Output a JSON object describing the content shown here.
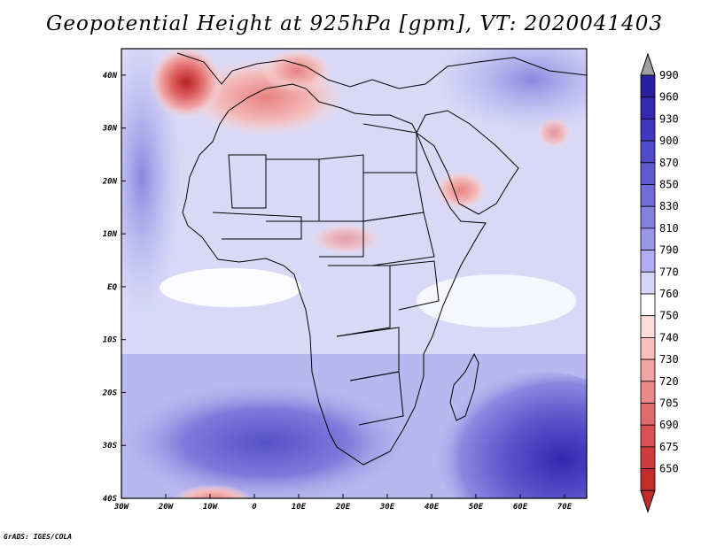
{
  "title": "Geopotential Height at 925hPa [gpm], VT: 2020041403",
  "credit": "GrADS: IGES/COLA",
  "map": {
    "lon_range": [
      -30,
      75
    ],
    "lat_range": [
      -40,
      45
    ],
    "lon_labels": [
      {
        "lon": -30,
        "label": "30W"
      },
      {
        "lon": -20,
        "label": "20W"
      },
      {
        "lon": -10,
        "label": "10W"
      },
      {
        "lon": 0,
        "label": "0"
      },
      {
        "lon": 10,
        "label": "10E"
      },
      {
        "lon": 20,
        "label": "20E"
      },
      {
        "lon": 30,
        "label": "30E"
      },
      {
        "lon": 40,
        "label": "40E"
      },
      {
        "lon": 50,
        "label": "50E"
      },
      {
        "lon": 60,
        "label": "60E"
      },
      {
        "lon": 70,
        "label": "70E"
      }
    ],
    "lat_labels": [
      {
        "lat": 40,
        "label": "40N"
      },
      {
        "lat": 30,
        "label": "30N"
      },
      {
        "lat": 20,
        "label": "20N"
      },
      {
        "lat": 10,
        "label": "10N"
      },
      {
        "lat": 0,
        "label": "EQ"
      },
      {
        "lat": -10,
        "label": "10S"
      },
      {
        "lat": -20,
        "label": "20S"
      },
      {
        "lat": -30,
        "label": "30S"
      },
      {
        "lat": -40,
        "label": "40S"
      }
    ]
  },
  "colorbar": {
    "levels": [
      {
        "label": "990",
        "color": "#2a1fa0"
      },
      {
        "label": "960",
        "color": "#3528b0"
      },
      {
        "label": "930",
        "color": "#4138bf"
      },
      {
        "label": "900",
        "color": "#5049c8"
      },
      {
        "label": "870",
        "color": "#5f5ad0"
      },
      {
        "label": "850",
        "color": "#716cd8"
      },
      {
        "label": "830",
        "color": "#8480e0"
      },
      {
        "label": "810",
        "color": "#9996e8"
      },
      {
        "label": "790",
        "color": "#b0aef0"
      },
      {
        "label": "770",
        "color": "#d6d6f6"
      },
      {
        "label": "760",
        "color": "#ffffff"
      },
      {
        "label": "750",
        "color": "#fbdcdc"
      },
      {
        "label": "740",
        "color": "#f6c0c0"
      },
      {
        "label": "730",
        "color": "#f0a4a4"
      },
      {
        "label": "720",
        "color": "#ea8888"
      },
      {
        "label": "705",
        "color": "#e26c6c"
      },
      {
        "label": "690",
        "color": "#da5252"
      },
      {
        "label": "675",
        "color": "#d03c3c"
      },
      {
        "label": "650",
        "color": "#c42c2c"
      }
    ],
    "top_arrow_color": "#a0a0a0",
    "bottom_arrow_color": "#c42c2c"
  },
  "field_colors": {
    "ocean_base": "#d8d8f7",
    "land_base": "#dcdcf8",
    "white": "#ffffff",
    "pink": "#f6c4c4",
    "red": "#e06868",
    "deep_red": "#cc3434",
    "blue": "#8f8ce4",
    "deep_blue": "#3e36b8",
    "outline": "#000000"
  }
}
